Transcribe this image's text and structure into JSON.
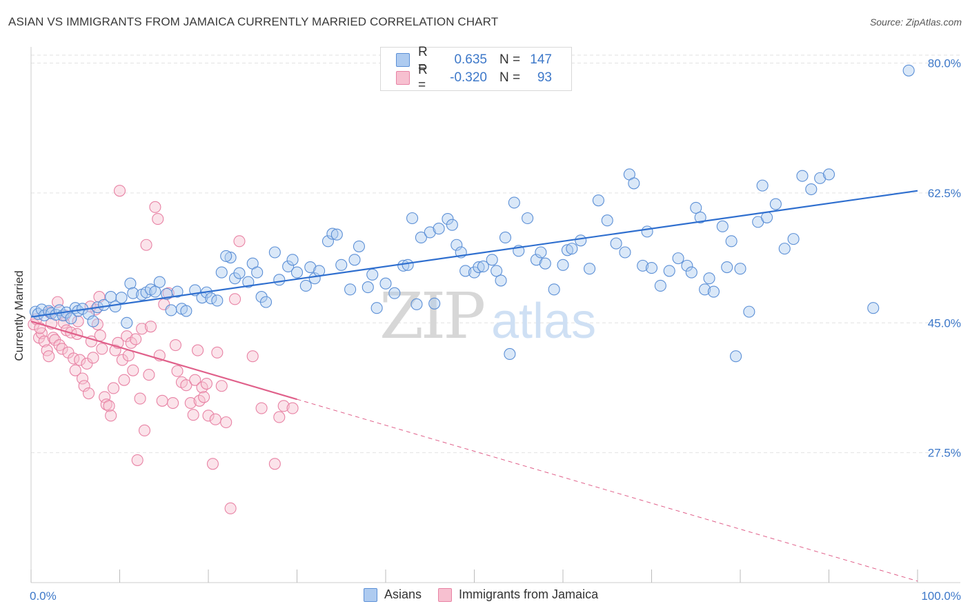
{
  "title": "ASIAN VS IMMIGRANTS FROM JAMAICA CURRENTLY MARRIED CORRELATION CHART",
  "source": "Source: ZipAtlas.com",
  "watermark": {
    "zip": "ZIP",
    "atlas": "atlas"
  },
  "colors": {
    "blue_fill": "#aecbf0",
    "blue_stroke": "#5b8fd6",
    "blue_line": "#2f6fcf",
    "pink_fill": "#f7c0d0",
    "pink_stroke": "#e882a4",
    "pink_line": "#e0608a",
    "tick_label": "#3d78c9",
    "grid": "#e2e2e2"
  },
  "legend": {
    "rows": [
      {
        "r_label": "R =",
        "r_value": "0.635",
        "n_label": "N =",
        "n_value": "147"
      },
      {
        "r_label": "R =",
        "r_value": "-0.320",
        "n_label": "N =",
        "n_value": "93"
      }
    ]
  },
  "bottom_legend": {
    "series1": "Asians",
    "series2": "Immigrants from Jamaica"
  },
  "chart_data": {
    "type": "scatter",
    "ylabel": "Currently Married",
    "xlim": [
      0,
      100
    ],
    "ylim": [
      10,
      82
    ],
    "x_tick_labels": {
      "min": "0.0%",
      "max": "100.0%"
    },
    "y_ticks": [
      {
        "value": 27.5,
        "label": "27.5%"
      },
      {
        "value": 45.0,
        "label": "45.0%"
      },
      {
        "value": 62.5,
        "label": "62.5%"
      },
      {
        "value": 80.0,
        "label": "80.0%"
      }
    ],
    "grid": true,
    "series": [
      {
        "name": "Asians",
        "color": "#5b8fd6",
        "trend": {
          "x": [
            0,
            100
          ],
          "y": [
            45.8,
            62.8
          ]
        },
        "points": [
          [
            0.5,
            46.5
          ],
          [
            0.8,
            46.2
          ],
          [
            1.2,
            46.8
          ],
          [
            1.5,
            46.0
          ],
          [
            2.0,
            46.6
          ],
          [
            2.3,
            46.3
          ],
          [
            2.8,
            46.1
          ],
          [
            3.2,
            46.7
          ],
          [
            3.6,
            46.0
          ],
          [
            4.0,
            46.4
          ],
          [
            4.5,
            45.6
          ],
          [
            5.0,
            47.0
          ],
          [
            5.3,
            46.6
          ],
          [
            5.8,
            46.9
          ],
          [
            6.5,
            46.2
          ],
          [
            7.0,
            45.2
          ],
          [
            7.5,
            47.1
          ],
          [
            8.2,
            47.4
          ],
          [
            9.0,
            48.5
          ],
          [
            9.5,
            47.2
          ],
          [
            10.2,
            48.4
          ],
          [
            10.8,
            45.0
          ],
          [
            11.2,
            50.3
          ],
          [
            11.5,
            49.0
          ],
          [
            12.5,
            48.8
          ],
          [
            13.0,
            49.1
          ],
          [
            13.5,
            49.5
          ],
          [
            14.0,
            49.2
          ],
          [
            14.5,
            50.5
          ],
          [
            15.3,
            48.9
          ],
          [
            15.8,
            46.7
          ],
          [
            16.5,
            49.2
          ],
          [
            17.0,
            46.9
          ],
          [
            17.5,
            46.6
          ],
          [
            18.5,
            49.4
          ],
          [
            19.3,
            48.4
          ],
          [
            19.8,
            49.1
          ],
          [
            20.3,
            48.3
          ],
          [
            21.0,
            48.0
          ],
          [
            21.5,
            51.8
          ],
          [
            22.5,
            53.8
          ],
          [
            23.0,
            51.0
          ],
          [
            23.5,
            51.7
          ],
          [
            24.5,
            50.5
          ],
          [
            25.0,
            53.0
          ],
          [
            25.5,
            51.8
          ],
          [
            26.0,
            48.5
          ],
          [
            26.5,
            47.8
          ],
          [
            27.5,
            54.5
          ],
          [
            28.0,
            50.8
          ],
          [
            29.0,
            52.6
          ],
          [
            29.5,
            53.5
          ],
          [
            30.0,
            51.8
          ],
          [
            31.0,
            50.0
          ],
          [
            31.5,
            52.5
          ],
          [
            32.0,
            51.0
          ],
          [
            32.5,
            52.0
          ],
          [
            33.5,
            56.0
          ],
          [
            34.0,
            57.0
          ],
          [
            34.5,
            56.9
          ],
          [
            35.0,
            52.8
          ],
          [
            36.0,
            49.5
          ],
          [
            36.5,
            53.5
          ],
          [
            37.0,
            55.3
          ],
          [
            38.0,
            49.8
          ],
          [
            38.5,
            51.5
          ],
          [
            39.0,
            47.0
          ],
          [
            40.0,
            50.3
          ],
          [
            41.0,
            49.0
          ],
          [
            42.0,
            52.7
          ],
          [
            42.5,
            52.8
          ],
          [
            43.0,
            59.1
          ],
          [
            44.0,
            56.5
          ],
          [
            45.0,
            57.2
          ],
          [
            46.0,
            57.7
          ],
          [
            47.0,
            59.0
          ],
          [
            47.5,
            58.2
          ],
          [
            48.0,
            55.5
          ],
          [
            48.5,
            54.5
          ],
          [
            49.0,
            52.0
          ],
          [
            50.0,
            51.8
          ],
          [
            50.5,
            52.5
          ],
          [
            51.0,
            52.6
          ],
          [
            52.0,
            53.5
          ],
          [
            52.5,
            52.0
          ],
          [
            53.0,
            50.7
          ],
          [
            54.0,
            40.8
          ],
          [
            54.5,
            61.2
          ],
          [
            55.0,
            54.7
          ],
          [
            56.0,
            59.1
          ],
          [
            57.0,
            53.5
          ],
          [
            57.5,
            54.5
          ],
          [
            58.0,
            53.0
          ],
          [
            59.0,
            49.5
          ],
          [
            60.0,
            52.8
          ],
          [
            60.5,
            54.8
          ],
          [
            61.0,
            55.0
          ],
          [
            62.0,
            56.1
          ],
          [
            63.0,
            52.3
          ],
          [
            64.0,
            61.5
          ],
          [
            65.0,
            58.8
          ],
          [
            66.0,
            55.7
          ],
          [
            67.0,
            54.5
          ],
          [
            67.5,
            65.0
          ],
          [
            68.0,
            63.8
          ],
          [
            69.0,
            52.7
          ],
          [
            69.5,
            57.3
          ],
          [
            70.0,
            52.4
          ],
          [
            71.0,
            50.0
          ],
          [
            72.0,
            52.0
          ],
          [
            73.0,
            53.7
          ],
          [
            74.0,
            52.7
          ],
          [
            74.5,
            51.8
          ],
          [
            75.0,
            60.5
          ],
          [
            75.5,
            59.2
          ],
          [
            76.0,
            49.5
          ],
          [
            76.5,
            51.0
          ],
          [
            77.0,
            49.2
          ],
          [
            78.0,
            58.0
          ],
          [
            78.5,
            52.5
          ],
          [
            79.0,
            56.0
          ],
          [
            79.5,
            40.5
          ],
          [
            80.0,
            52.3
          ],
          [
            81.0,
            46.5
          ],
          [
            82.0,
            58.6
          ],
          [
            82.5,
            63.5
          ],
          [
            83.0,
            59.2
          ],
          [
            84.0,
            61.0
          ],
          [
            85.0,
            55.0
          ],
          [
            86.0,
            56.3
          ],
          [
            87.0,
            64.8
          ],
          [
            88.0,
            63.0
          ],
          [
            89.0,
            64.5
          ],
          [
            90.0,
            65.0
          ],
          [
            95.0,
            47.0
          ],
          [
            99.0,
            79.0
          ],
          [
            22.0,
            54.0
          ],
          [
            43.5,
            47.5
          ],
          [
            45.5,
            47.6
          ],
          [
            53.5,
            56.5
          ]
        ]
      },
      {
        "name": "Immigrants from Jamaica",
        "color": "#e882a4",
        "trend": {
          "x": [
            0,
            30
          ],
          "y": [
            45.2,
            34.7
          ]
        },
        "trend_dashed": {
          "x": [
            30,
            100
          ],
          "y": [
            34.7,
            10.2
          ]
        },
        "points": [
          [
            0.3,
            44.8
          ],
          [
            0.6,
            45.5
          ],
          [
            0.9,
            43.0
          ],
          [
            1.2,
            43.6
          ],
          [
            1.5,
            42.5
          ],
          [
            1.8,
            41.3
          ],
          [
            2.0,
            40.5
          ],
          [
            2.3,
            44.9
          ],
          [
            2.5,
            43.0
          ],
          [
            2.7,
            42.7
          ],
          [
            3.0,
            47.8
          ],
          [
            3.2,
            42.0
          ],
          [
            3.5,
            41.5
          ],
          [
            3.7,
            45.0
          ],
          [
            4.0,
            44.0
          ],
          [
            4.2,
            41.0
          ],
          [
            4.5,
            43.7
          ],
          [
            4.8,
            40.2
          ],
          [
            5.0,
            38.6
          ],
          [
            5.3,
            45.2
          ],
          [
            5.5,
            40.0
          ],
          [
            5.8,
            37.5
          ],
          [
            6.0,
            36.5
          ],
          [
            6.3,
            39.5
          ],
          [
            6.5,
            35.5
          ],
          [
            6.8,
            42.5
          ],
          [
            7.0,
            40.3
          ],
          [
            7.3,
            46.8
          ],
          [
            7.5,
            44.8
          ],
          [
            7.8,
            43.3
          ],
          [
            8.0,
            41.5
          ],
          [
            8.3,
            35.0
          ],
          [
            8.5,
            34.0
          ],
          [
            8.8,
            33.8
          ],
          [
            9.0,
            32.5
          ],
          [
            9.3,
            36.2
          ],
          [
            9.5,
            41.3
          ],
          [
            9.8,
            42.3
          ],
          [
            10.0,
            62.8
          ],
          [
            10.3,
            40.0
          ],
          [
            10.5,
            37.3
          ],
          [
            10.8,
            43.2
          ],
          [
            11.0,
            40.6
          ],
          [
            11.3,
            42.3
          ],
          [
            11.5,
            38.6
          ],
          [
            11.8,
            42.8
          ],
          [
            12.0,
            26.5
          ],
          [
            12.3,
            34.8
          ],
          [
            12.5,
            44.2
          ],
          [
            12.8,
            30.5
          ],
          [
            13.0,
            55.5
          ],
          [
            13.3,
            38.0
          ],
          [
            13.5,
            44.5
          ],
          [
            14.0,
            60.6
          ],
          [
            14.3,
            59.0
          ],
          [
            14.5,
            40.6
          ],
          [
            14.8,
            34.5
          ],
          [
            15.0,
            47.5
          ],
          [
            15.5,
            49.0
          ],
          [
            16.0,
            34.2
          ],
          [
            16.3,
            42.0
          ],
          [
            16.5,
            38.5
          ],
          [
            17.0,
            37.0
          ],
          [
            17.5,
            36.6
          ],
          [
            18.0,
            34.2
          ],
          [
            18.3,
            32.6
          ],
          [
            18.5,
            37.3
          ],
          [
            18.8,
            41.3
          ],
          [
            19.0,
            34.5
          ],
          [
            19.3,
            36.3
          ],
          [
            19.5,
            35.0
          ],
          [
            19.8,
            36.8
          ],
          [
            20.0,
            32.5
          ],
          [
            20.5,
            26.0
          ],
          [
            20.8,
            32.0
          ],
          [
            21.0,
            41.0
          ],
          [
            21.5,
            36.5
          ],
          [
            22.0,
            31.6
          ],
          [
            22.5,
            20.0
          ],
          [
            23.0,
            48.2
          ],
          [
            23.5,
            56.0
          ],
          [
            25.0,
            40.5
          ],
          [
            26.0,
            33.5
          ],
          [
            27.5,
            26.0
          ],
          [
            28.0,
            32.3
          ],
          [
            28.5,
            33.8
          ],
          [
            29.5,
            33.5
          ],
          [
            5.2,
            43.5
          ],
          [
            3.8,
            46.0
          ],
          [
            2.1,
            46.4
          ],
          [
            1.0,
            44.3
          ],
          [
            6.7,
            47.2
          ],
          [
            7.7,
            48.5
          ]
        ]
      }
    ]
  }
}
